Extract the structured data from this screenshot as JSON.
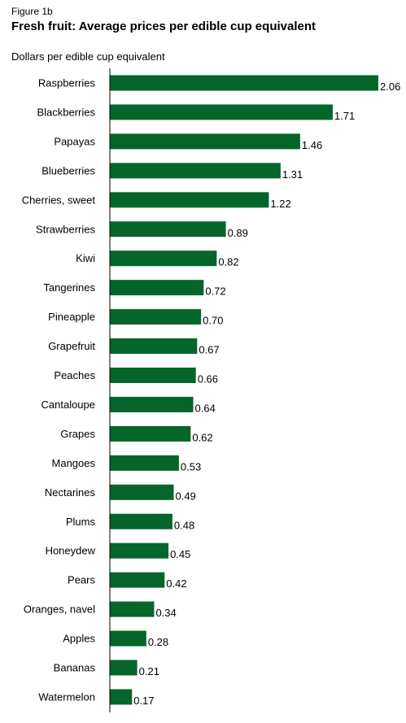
{
  "figure_label": "Figure 1b",
  "chart_data": {
    "type": "bar",
    "orientation": "horizontal",
    "title": "Fresh fruit: Average prices per edible cup equivalent",
    "ylabel": "Dollars per edible cup equivalent",
    "bar_color": "#05652a",
    "categories": [
      "Raspberries",
      "Blackberries",
      "Papayas",
      "Blueberries",
      "Cherries, sweet",
      "Strawberries",
      "Kiwi",
      "Tangerines",
      "Pineapple",
      "Grapefruit",
      "Peaches",
      "Cantaloupe",
      "Grapes",
      "Mangoes",
      "Nectarines",
      "Plums",
      "Honeydew",
      "Pears",
      "Oranges, navel",
      "Apples",
      "Bananas",
      "Watermelon"
    ],
    "values": [
      2.06,
      1.71,
      1.46,
      1.31,
      1.22,
      0.89,
      0.82,
      0.72,
      0.7,
      0.67,
      0.66,
      0.64,
      0.62,
      0.53,
      0.49,
      0.48,
      0.45,
      0.42,
      0.34,
      0.28,
      0.21,
      0.17
    ],
    "value_labels": [
      "2.06",
      "1.71",
      "1.46",
      "1.31",
      "1.22",
      "0.89",
      "0.82",
      "0.72",
      "0.70",
      "0.67",
      "0.66",
      "0.64",
      "0.62",
      "0.53",
      "0.49",
      "0.48",
      "0.45",
      "0.42",
      "0.34",
      "0.28",
      "0.21",
      "0.17"
    ],
    "xlim": [
      0,
      2.06
    ],
    "grid": false,
    "legend": false
  }
}
